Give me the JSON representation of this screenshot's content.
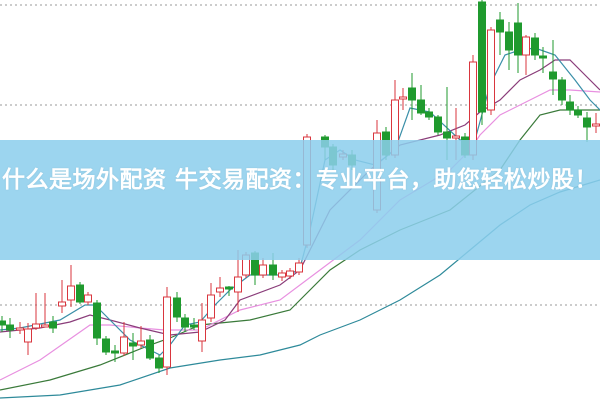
{
  "article": {
    "title": "什么是场外配资 牛交易配资：专业平台，助您轻松炒股！"
  },
  "chart_data": {
    "type": "candlestick",
    "title": "",
    "xlabel": "",
    "ylabel": "",
    "grid": "dotted horizontal lines",
    "legend": "none",
    "moving_average_lines": 5,
    "colors": {
      "up": "#d9363e",
      "down": "#1f9a2e",
      "ma_a": "#3a8fa8",
      "ma_b": "#8a3d7a",
      "ma_c": "#e890e0",
      "ma_d": "#3a7a3a",
      "ma_e": "#2e8a9a",
      "banner": "#8cceec"
    }
  }
}
